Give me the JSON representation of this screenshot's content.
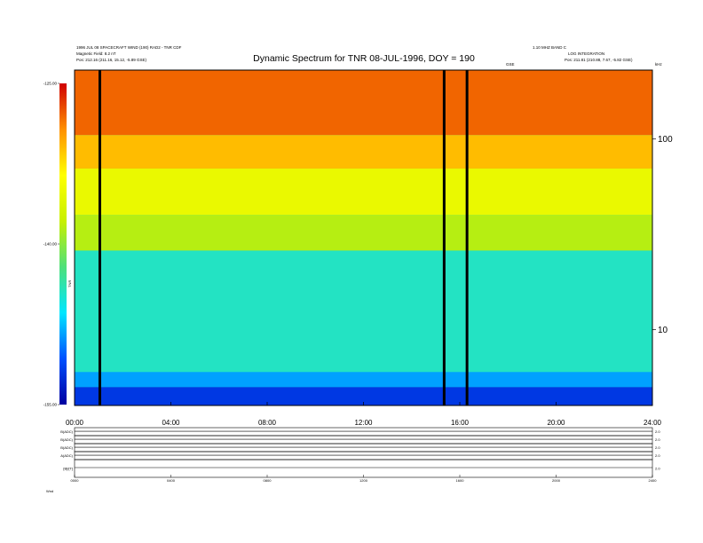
{
  "chart_data": {
    "type": "heatmap",
    "title": "Dynamic Spectrum for TNR 08-JUL-1996, DOY = 190",
    "x_tick_labels": [
      "00:00",
      "04:00",
      "08:00",
      "12:00",
      "16:00",
      "20:00",
      "24:00"
    ],
    "x_tick_hours": [
      0,
      4,
      8,
      12,
      16,
      20,
      24
    ],
    "xlim_hours": [
      0,
      24
    ],
    "ylabel_right": "kHz",
    "y_scale": "log",
    "ylim_khz": [
      4,
      230
    ],
    "y_tick_labels": [
      "100",
      "10"
    ],
    "y_tick_values_khz": [
      100,
      10
    ],
    "colorbar": {
      "label": "TNR",
      "tick_labels": [
        "-125.00",
        "-140.00",
        "-155.00"
      ],
      "tick_values": [
        -125,
        -140,
        -155
      ],
      "range": [
        -155,
        -125
      ],
      "colors": [
        "#0000a0",
        "#0050ff",
        "#00e6ff",
        "#4ee07a",
        "#c8f000",
        "#ffff00",
        "#ff9000",
        "#d00000"
      ]
    },
    "bands": [
      {
        "level": 0.1,
        "from_khz": 4,
        "to_khz": 5
      },
      {
        "level": 0.22,
        "from_khz": 5,
        "to_khz": 6
      },
      {
        "level": 0.35,
        "from_khz": 6,
        "to_khz": 26
      },
      {
        "level": 0.55,
        "from_khz": 26,
        "to_khz": 40
      },
      {
        "level": 0.66,
        "from_khz": 40,
        "to_khz": 70
      },
      {
        "level": 0.8,
        "from_khz": 70,
        "to_khz": 105
      },
      {
        "level": 0.9,
        "from_khz": 105,
        "to_khz": 230
      }
    ],
    "data_gaps_hours": [
      1.05,
      15.35,
      16.3
    ],
    "panels": [
      {
        "label": "B(ADC)",
        "right_label": "2.0"
      },
      {
        "label": "B(ADC)",
        "right_label": "2.0"
      },
      {
        "label": "B(ADC)",
        "right_label": "2.0"
      },
      {
        "label": "A(ADC)",
        "right_label": "2.0"
      },
      {
        "label": "[B]/[T]",
        "right_label": "2.0"
      }
    ],
    "bottom_tick_labels": [
      "0000",
      "0400",
      "0800",
      "1200",
      "1600",
      "2000",
      "2400"
    ],
    "bottom_left_label": "Wnd"
  },
  "header": {
    "left_lines": [
      "1996 JUL 08 SPACECRAFT WIND (190) RAD2 - TNR CDF",
      "Magnetic Field: 8.2 nT",
      "Pos: 212.16 (211.16, 15.12, -5.89 GSE)"
    ],
    "right_lines": [
      "1.10 MHZ BAND C",
      "LOG INTEGRATION",
      "Pos: 211.81 (210.88, 7.67, -5.82 GSE)"
    ],
    "units_label": "GSE",
    "units_label2": "kHz"
  }
}
